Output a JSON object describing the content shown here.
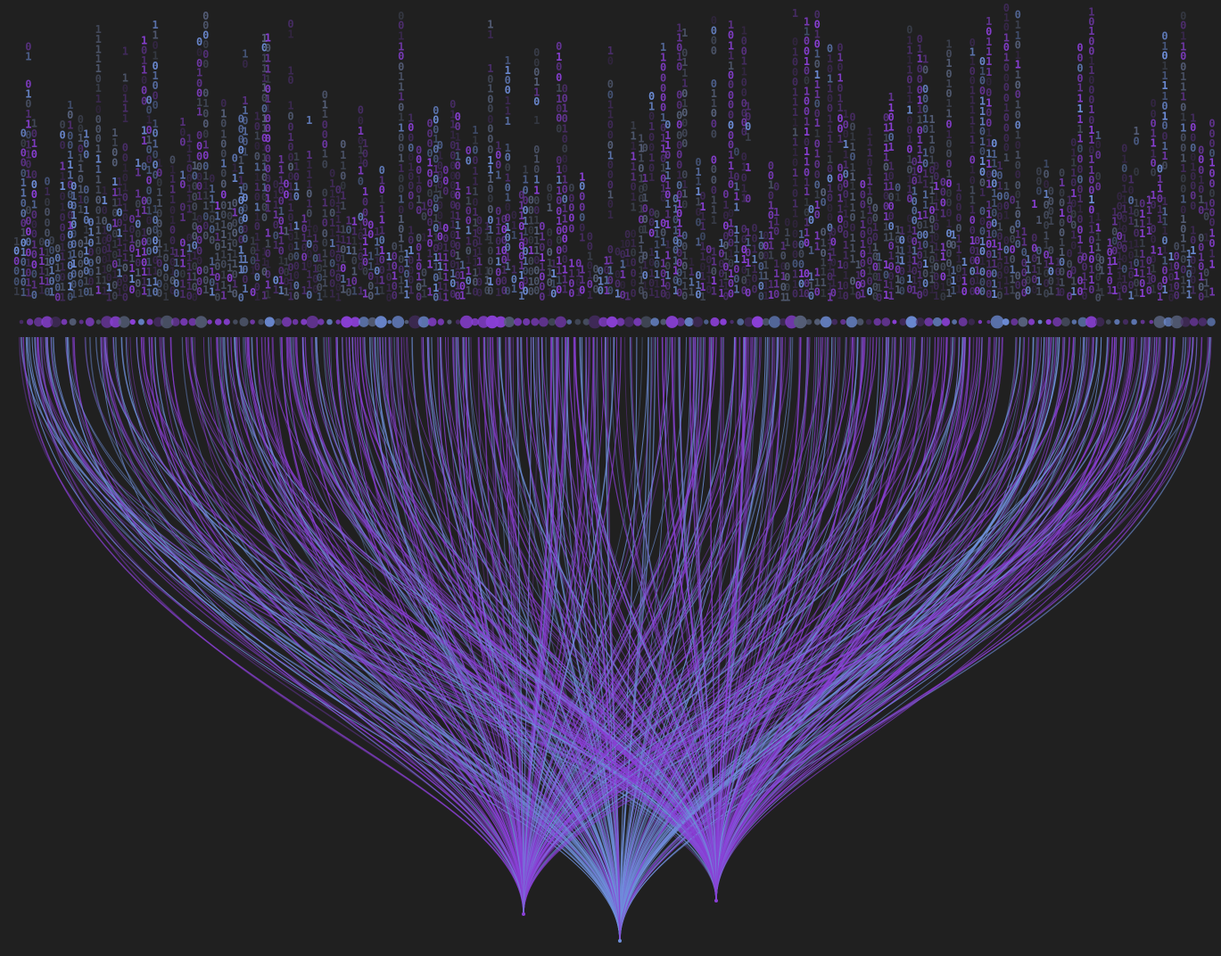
{
  "colors": {
    "background": "#202020",
    "purple": "#8a3fd6",
    "blue": "#6f8fdb",
    "slate": "#56607a",
    "dim_purple": "#4a2d6b"
  },
  "binary_digits": [
    "0",
    "1"
  ],
  "sinks": [
    {
      "id": "sink-left",
      "color": "purple",
      "share": 0.34
    },
    {
      "id": "sink-center",
      "color": "blue",
      "share": 0.3
    },
    {
      "id": "sink-right",
      "color": "purple",
      "share": 0.36
    }
  ],
  "source_node_count": 140,
  "binary_column_count": 210
}
